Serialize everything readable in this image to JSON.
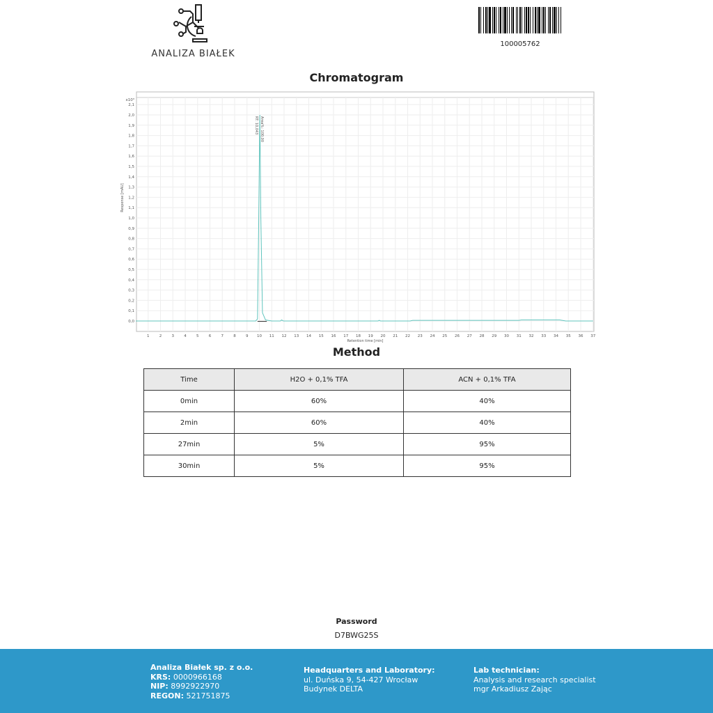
{
  "header": {
    "logo_text": "ANALIZA BIAŁEK",
    "barcode_number": "100005762"
  },
  "chromatogram": {
    "title": "Chromatogram"
  },
  "chart_data": {
    "type": "line",
    "xlabel": "Retention time [min]",
    "ylabel": "Response [mAU]",
    "y_multiplier": "x10³",
    "xlim": [
      0,
      37
    ],
    "ylim": [
      -0.1,
      2.2
    ],
    "x_ticks": [
      1,
      2,
      3,
      4,
      5,
      6,
      7,
      8,
      9,
      10,
      11,
      12,
      13,
      14,
      15,
      16,
      17,
      18,
      19,
      20,
      21,
      22,
      23,
      24,
      25,
      26,
      27,
      28,
      29,
      30,
      31,
      32,
      33,
      34,
      35,
      36,
      37
    ],
    "y_ticks": [
      "0,0",
      "0,1",
      "0,2",
      "0,3",
      "0,4",
      "0,5",
      "0,6",
      "0,7",
      "0,8",
      "0,9",
      "1,0",
      "1,1",
      "1,2",
      "1,3",
      "1,4",
      "1,5",
      "1,6",
      "1,7",
      "1,8",
      "1,9",
      "2,0",
      "2,1"
    ],
    "grid": true,
    "series": [
      {
        "color": "#5fc4bd",
        "points": [
          [
            0,
            0
          ],
          [
            9.7,
            0
          ],
          [
            9.85,
            0.02
          ],
          [
            9.95,
            1.0
          ],
          [
            10.04,
            2.0
          ],
          [
            10.12,
            1.0
          ],
          [
            10.25,
            0.08
          ],
          [
            10.5,
            0.01
          ],
          [
            11,
            0
          ],
          [
            11.7,
            0
          ],
          [
            11.8,
            0.01
          ],
          [
            11.95,
            0
          ],
          [
            19.6,
            0
          ],
          [
            19.7,
            0.006
          ],
          [
            19.8,
            0
          ],
          [
            22.2,
            0
          ],
          [
            22.4,
            0.006
          ],
          [
            31,
            0.006
          ],
          [
            31.2,
            0.01
          ],
          [
            34.3,
            0.01
          ],
          [
            34.8,
            0
          ],
          [
            37,
            0
          ]
        ]
      }
    ],
    "peak_annotations": [
      "RT: 10,043",
      "Area%: 100,00"
    ]
  },
  "method": {
    "title": "Method",
    "columns": [
      "Time",
      "H2O + 0,1% TFA",
      "ACN + 0,1% TFA"
    ],
    "rows": [
      [
        "0min",
        "60%",
        "40%"
      ],
      [
        "2min",
        "60%",
        "40%"
      ],
      [
        "27min",
        "5%",
        "95%"
      ],
      [
        "30min",
        "5%",
        "95%"
      ]
    ]
  },
  "password": {
    "label": "Password",
    "value": "D7BWG25S"
  },
  "footer": {
    "company": "Analiza Białek sp. z o.o.",
    "krs_label": "KRS:",
    "krs": "0000966168",
    "nip_label": "NIP:",
    "nip": "8992922970",
    "regon_label": "REGON:",
    "regon": "521751875",
    "hq_label": "Headquarters and Laboratory:",
    "hq_line1": "ul. Duńska 9, 54-427 Wrocław",
    "hq_line2": "Budynek DELTA",
    "tech_label": "Lab technician:",
    "tech_line1": "Analysis and research specialist",
    "tech_line2": "mgr Arkadiusz Zając"
  }
}
